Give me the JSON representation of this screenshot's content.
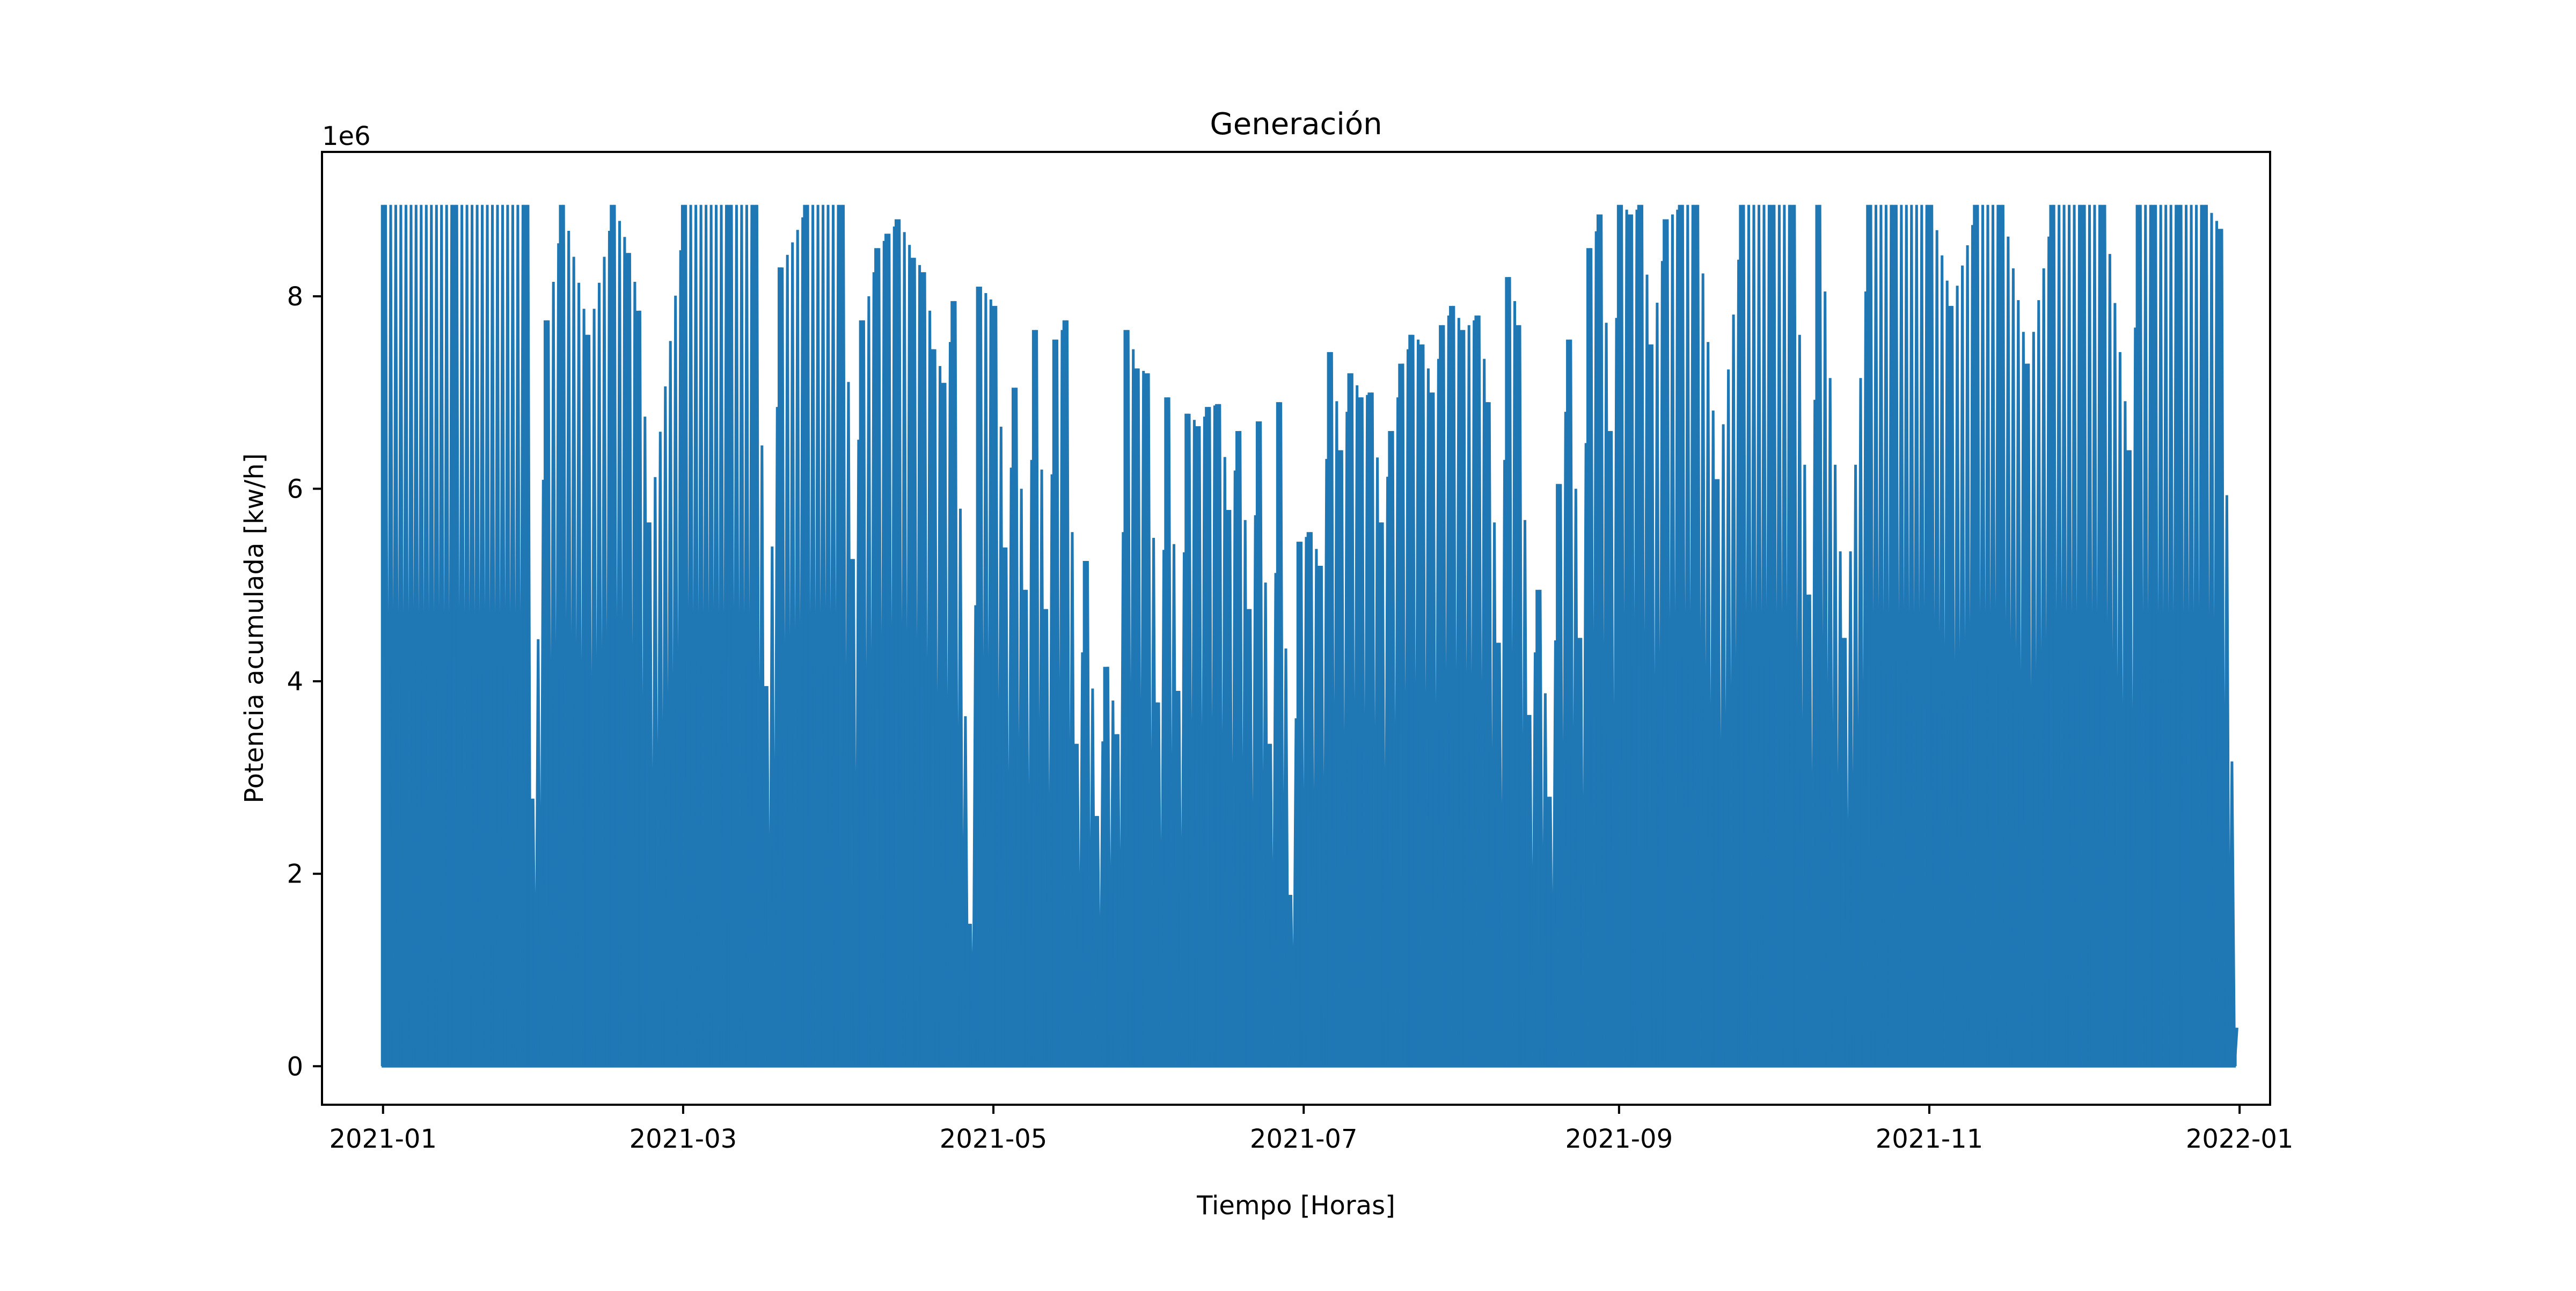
{
  "chart_data": {
    "type": "line",
    "title": "Generación",
    "xlabel": "Tiempo [Horas]",
    "ylabel": "Potencia acumulada [kw/h]",
    "y_offset_label": "1e6",
    "y_scale_note": "values in kw/h; axis multiplier 1e6",
    "xlim": [
      "2020-12-20",
      "2022-01-07"
    ],
    "ylim": [
      -400000,
      9500000
    ],
    "x_tick_labels": [
      "2021-01",
      "2021-03",
      "2021-05",
      "2021-07",
      "2021-09",
      "2021-11",
      "2022-01"
    ],
    "y_tick_labels": [
      "0",
      "2",
      "4",
      "6",
      "8"
    ],
    "y_tick_values": [
      0,
      2000000,
      4000000,
      6000000,
      8000000
    ],
    "grid": false,
    "legend": "none",
    "series": [
      {
        "color": "#1f77b4",
        "sampling": "daily peak of hourly series; falls to 0 every night",
        "x": [
          "2021-01-01",
          "2021-01-15",
          "2021-01-29",
          "2021-01-30",
          "2021-02-02",
          "2021-02-05",
          "2021-02-10",
          "2021-02-15",
          "2021-02-18",
          "2021-02-20",
          "2021-02-22",
          "2021-03-01",
          "2021-03-10",
          "2021-03-15",
          "2021-03-17",
          "2021-03-20",
          "2021-03-25",
          "2021-04-01",
          "2021-04-03",
          "2021-04-05",
          "2021-04-08",
          "2021-04-10",
          "2021-04-12",
          "2021-04-15",
          "2021-04-17",
          "2021-04-19",
          "2021-04-21",
          "2021-04-23",
          "2021-04-26",
          "2021-04-28",
          "2021-05-01",
          "2021-05-03",
          "2021-05-05",
          "2021-05-07",
          "2021-05-09",
          "2021-05-11",
          "2021-05-13",
          "2021-05-15",
          "2021-05-17",
          "2021-05-19",
          "2021-05-21",
          "2021-05-23",
          "2021-05-25",
          "2021-05-27",
          "2021-05-29",
          "2021-05-31",
          "2021-06-02",
          "2021-06-04",
          "2021-06-06",
          "2021-06-08",
          "2021-06-10",
          "2021-06-12",
          "2021-06-14",
          "2021-06-16",
          "2021-06-18",
          "2021-06-20",
          "2021-06-22",
          "2021-06-24",
          "2021-06-26",
          "2021-06-28",
          "2021-06-30",
          "2021-07-02",
          "2021-07-04",
          "2021-07-06",
          "2021-07-08",
          "2021-07-10",
          "2021-07-12",
          "2021-07-14",
          "2021-07-16",
          "2021-07-18",
          "2021-07-20",
          "2021-07-22",
          "2021-07-24",
          "2021-07-26",
          "2021-07-28",
          "2021-07-30",
          "2021-08-01",
          "2021-08-04",
          "2021-08-06",
          "2021-08-08",
          "2021-08-10",
          "2021-08-12",
          "2021-08-14",
          "2021-08-16",
          "2021-08-18",
          "2021-08-20",
          "2021-08-22",
          "2021-08-24",
          "2021-08-26",
          "2021-08-28",
          "2021-08-30",
          "2021-09-01",
          "2021-09-03",
          "2021-09-05",
          "2021-09-07",
          "2021-09-10",
          "2021-09-13",
          "2021-09-16",
          "2021-09-20",
          "2021-09-25",
          "2021-10-01",
          "2021-10-05",
          "2021-10-08",
          "2021-10-10",
          "2021-10-15",
          "2021-10-20",
          "2021-10-25",
          "2021-11-01",
          "2021-11-05",
          "2021-11-10",
          "2021-11-15",
          "2021-11-20",
          "2021-11-25",
          "2021-12-01",
          "2021-12-05",
          "2021-12-10",
          "2021-12-12",
          "2021-12-15",
          "2021-12-20",
          "2021-12-25",
          "2021-12-28",
          "2021-12-31"
        ],
        "y": [
          8950000,
          8950000,
          8950000,
          2780000,
          7750000,
          8950000,
          7600000,
          8950000,
          8450000,
          7850000,
          5650000,
          8950000,
          8950000,
          8950000,
          3950000,
          8300000,
          8950000,
          8950000,
          5270000,
          7750000,
          8500000,
          8650000,
          8800000,
          8400000,
          8250000,
          7450000,
          7100000,
          7950000,
          1480000,
          8100000,
          7900000,
          5390000,
          7050000,
          4950000,
          7650000,
          4750000,
          7550000,
          7750000,
          3350000,
          5250000,
          2600000,
          4150000,
          3450000,
          7650000,
          7250000,
          7200000,
          3780000,
          6950000,
          3900000,
          6780000,
          6650000,
          6850000,
          6880000,
          5780000,
          6600000,
          4750000,
          6700000,
          3350000,
          6900000,
          1780000,
          5450000,
          5550000,
          5200000,
          7420000,
          6400000,
          7200000,
          6950000,
          7000000,
          5650000,
          6600000,
          7300000,
          7600000,
          7500000,
          7000000,
          7700000,
          7900000,
          7650000,
          7800000,
          6900000,
          4400000,
          8200000,
          7700000,
          3650000,
          4950000,
          2800000,
          6050000,
          7550000,
          4450000,
          8500000,
          8850000,
          6600000,
          8950000,
          8850000,
          8950000,
          7500000,
          8800000,
          8950000,
          8950000,
          6100000,
          8950000,
          8950000,
          8950000,
          4900000,
          8950000,
          4450000,
          8950000,
          8950000,
          8950000,
          7900000,
          8950000,
          8950000,
          7300000,
          8950000,
          8950000,
          8950000,
          6400000,
          8950000,
          8950000,
          8950000,
          8950000,
          8700000,
          400000
        ]
      }
    ]
  }
}
